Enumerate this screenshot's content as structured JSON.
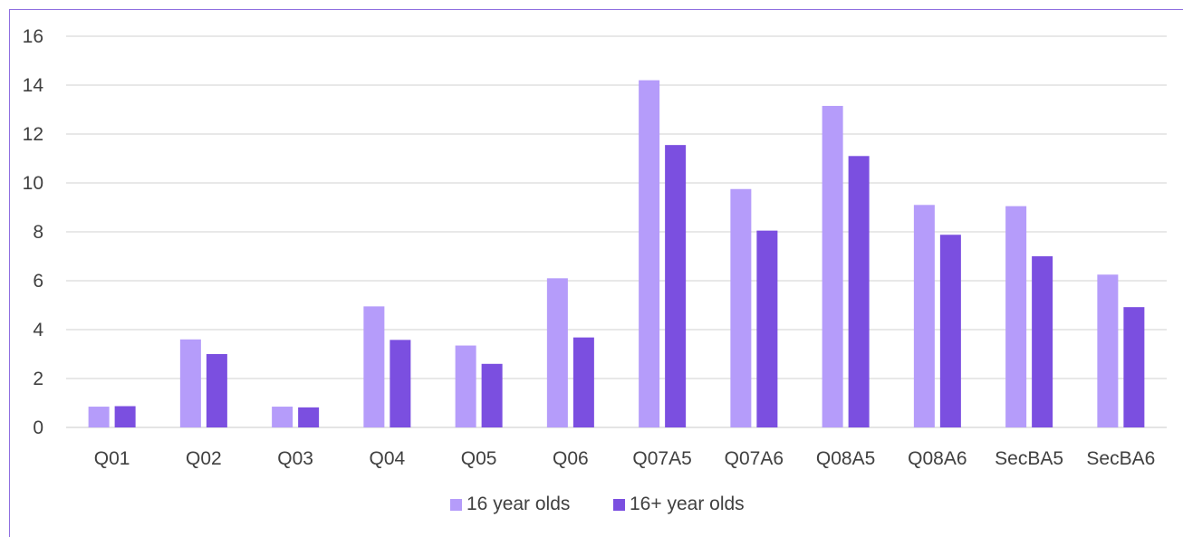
{
  "chart_data": {
    "type": "bar",
    "categories": [
      "Q01",
      "Q02",
      "Q03",
      "Q04",
      "Q05",
      "Q06",
      "Q07A5",
      "Q07A6",
      "Q08A5",
      "Q08A6",
      "SecBA5",
      "SecBA6"
    ],
    "series": [
      {
        "name": "16 year olds",
        "color": "#b59cfa",
        "values": [
          0.85,
          3.6,
          0.85,
          4.95,
          3.35,
          6.1,
          14.2,
          9.75,
          13.15,
          9.1,
          9.05,
          6.25
        ]
      },
      {
        "name": "16+ year olds",
        "color": "#7b4fe0",
        "values": [
          0.87,
          3.0,
          0.82,
          3.58,
          2.6,
          3.68,
          11.55,
          8.05,
          11.1,
          7.88,
          7.0,
          4.92
        ]
      }
    ],
    "yticks": [
      "0",
      "2",
      "4",
      "6",
      "8",
      "10",
      "12",
      "14",
      "16"
    ],
    "ylim": [
      0,
      16
    ],
    "grid": true,
    "legend_position": "bottom"
  }
}
